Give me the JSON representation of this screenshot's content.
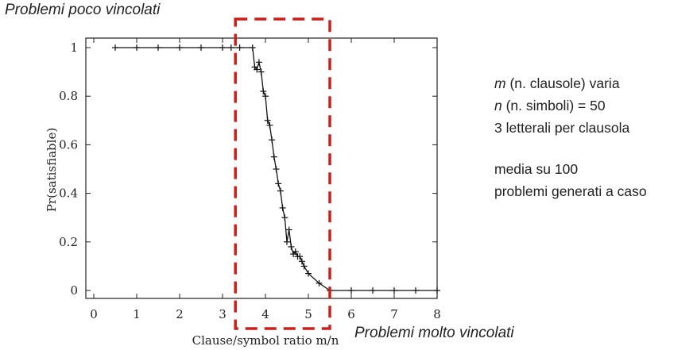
{
  "annotations": {
    "top": "Problemi poco vincolati",
    "bottom": "Problemi molto vincolati"
  },
  "notes": {
    "line1_var": "m",
    "line1_rest": " (n. clausole) varia",
    "line2_var": "n",
    "line2_rest": " (n. simboli) = 50",
    "line3": "3 letterali per clausola",
    "line4": "media su 100",
    "line5": "problemi generati a caso"
  },
  "colors": {
    "highlight_box": "#cc1f1a",
    "series": "#111111"
  },
  "chart_data": {
    "type": "line",
    "title": "",
    "xlabel": "Clause/symbol ratio m/n",
    "ylabel": "Pr(satisfiable)",
    "xlim": [
      0,
      8
    ],
    "ylim": [
      0,
      1
    ],
    "xticks": [
      0,
      1,
      2,
      3,
      4,
      5,
      6,
      7,
      8
    ],
    "yticks": [
      0,
      0.2,
      0.4,
      0.6,
      0.8,
      1
    ],
    "ytick_labels": [
      "0",
      "0.2",
      "0.4",
      "0.6",
      "0.8",
      "1"
    ],
    "grid": false,
    "highlight_region": [
      3.3,
      5.5
    ],
    "series": [
      {
        "name": "",
        "marker": "plus",
        "x": [
          0.5,
          1.0,
          1.5,
          2.0,
          2.5,
          3.0,
          3.2,
          3.4,
          3.7,
          3.75,
          3.8,
          3.85,
          3.9,
          3.95,
          4.0,
          4.05,
          4.1,
          4.15,
          4.2,
          4.25,
          4.3,
          4.35,
          4.4,
          4.45,
          4.5,
          4.55,
          4.6,
          4.65,
          4.7,
          4.75,
          4.8,
          4.85,
          4.9,
          5.0,
          5.25,
          5.5,
          6.0,
          6.5,
          7.0,
          7.5,
          8.0
        ],
        "y": [
          1.0,
          1.0,
          1.0,
          1.0,
          1.0,
          1.0,
          1.0,
          1.0,
          1.0,
          0.92,
          0.91,
          0.94,
          0.9,
          0.82,
          0.8,
          0.7,
          0.68,
          0.62,
          0.55,
          0.5,
          0.44,
          0.41,
          0.34,
          0.3,
          0.2,
          0.25,
          0.18,
          0.15,
          0.16,
          0.14,
          0.14,
          0.12,
          0.1,
          0.07,
          0.03,
          0.0,
          0.0,
          0.0,
          0.0,
          0.0,
          0.0
        ]
      }
    ]
  }
}
